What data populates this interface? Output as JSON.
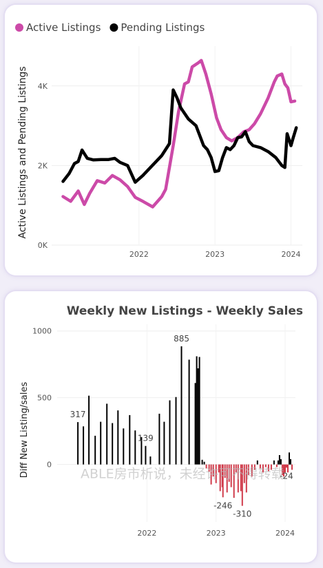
{
  "charts": [
    {
      "type": "line",
      "legend": {
        "position": "top-left",
        "items": [
          {
            "label": "Active Listings",
            "color": "#cc4aa8",
            "icon": "circle-marker-icon"
          },
          {
            "label": "Pending Listings",
            "color": "#000000",
            "icon": "circle-marker-icon"
          }
        ]
      },
      "ylabel": "Active Listings and Pending Listings",
      "xlabel": "",
      "ylim": [
        0,
        5000
      ],
      "yticks": [
        {
          "v": 0,
          "label": "0K"
        },
        {
          "v": 2000,
          "label": "2K"
        },
        {
          "v": 4000,
          "label": "4K"
        }
      ],
      "xticks": [
        {
          "v": 2022.0,
          "label": "2022"
        },
        {
          "v": 2023.0,
          "label": "2023"
        },
        {
          "v": 2024.0,
          "label": "2024"
        }
      ],
      "xlim": [
        2020.85,
        2024.15
      ],
      "series": [
        {
          "name": "Active Listings",
          "color": "#cc4aa8",
          "points": [
            [
              2021.0,
              1220
            ],
            [
              2021.1,
              1100
            ],
            [
              2021.2,
              1360
            ],
            [
              2021.28,
              1020
            ],
            [
              2021.35,
              1300
            ],
            [
              2021.45,
              1620
            ],
            [
              2021.55,
              1560
            ],
            [
              2021.65,
              1750
            ],
            [
              2021.75,
              1640
            ],
            [
              2021.85,
              1470
            ],
            [
              2021.95,
              1200
            ],
            [
              2022.05,
              1100
            ],
            [
              2022.18,
              960
            ],
            [
              2022.3,
              1220
            ],
            [
              2022.35,
              1400
            ],
            [
              2022.45,
              2500
            ],
            [
              2022.52,
              3350
            ],
            [
              2022.6,
              4050
            ],
            [
              2022.65,
              4100
            ],
            [
              2022.7,
              4480
            ],
            [
              2022.78,
              4580
            ],
            [
              2022.82,
              4640
            ],
            [
              2022.88,
              4300
            ],
            [
              2022.95,
              3800
            ],
            [
              2023.02,
              3200
            ],
            [
              2023.08,
              2900
            ],
            [
              2023.15,
              2700
            ],
            [
              2023.22,
              2620
            ],
            [
              2023.3,
              2700
            ],
            [
              2023.38,
              2850
            ],
            [
              2023.45,
              2900
            ],
            [
              2023.52,
              3050
            ],
            [
              2023.6,
              3300
            ],
            [
              2023.7,
              3700
            ],
            [
              2023.78,
              4100
            ],
            [
              2023.82,
              4250
            ],
            [
              2023.88,
              4300
            ],
            [
              2023.92,
              4050
            ],
            [
              2023.96,
              3950
            ],
            [
              2024.0,
              3600
            ],
            [
              2024.05,
              3620
            ]
          ]
        },
        {
          "name": "Pending Listings",
          "color": "#000000",
          "points": [
            [
              2021.0,
              1600
            ],
            [
              2021.08,
              1800
            ],
            [
              2021.15,
              2050
            ],
            [
              2021.2,
              2100
            ],
            [
              2021.25,
              2390
            ],
            [
              2021.32,
              2180
            ],
            [
              2021.4,
              2140
            ],
            [
              2021.5,
              2150
            ],
            [
              2021.6,
              2150
            ],
            [
              2021.68,
              2180
            ],
            [
              2021.75,
              2080
            ],
            [
              2021.85,
              2000
            ],
            [
              2021.95,
              1580
            ],
            [
              2022.05,
              1750
            ],
            [
              2022.15,
              1950
            ],
            [
              2022.3,
              2250
            ],
            [
              2022.4,
              2550
            ],
            [
              2022.45,
              3900
            ],
            [
              2022.5,
              3700
            ],
            [
              2022.55,
              3450
            ],
            [
              2022.65,
              3170
            ],
            [
              2022.75,
              3000
            ],
            [
              2022.8,
              2750
            ],
            [
              2022.85,
              2500
            ],
            [
              2022.9,
              2400
            ],
            [
              2022.95,
              2200
            ],
            [
              2023.0,
              1850
            ],
            [
              2023.05,
              1870
            ],
            [
              2023.1,
              2200
            ],
            [
              2023.15,
              2450
            ],
            [
              2023.2,
              2400
            ],
            [
              2023.25,
              2500
            ],
            [
              2023.3,
              2700
            ],
            [
              2023.35,
              2720
            ],
            [
              2023.4,
              2850
            ],
            [
              2023.45,
              2600
            ],
            [
              2023.5,
              2500
            ],
            [
              2023.6,
              2450
            ],
            [
              2023.7,
              2350
            ],
            [
              2023.8,
              2200
            ],
            [
              2023.88,
              2000
            ],
            [
              2023.92,
              1950
            ],
            [
              2023.95,
              2800
            ],
            [
              2024.0,
              2500
            ],
            [
              2024.03,
              2700
            ],
            [
              2024.07,
              2950
            ]
          ]
        }
      ]
    },
    {
      "type": "bar",
      "title": "Weekly New Listings - Weekly Sales",
      "ylabel": "Diff New Listing/sales",
      "xlabel": "",
      "ylim": [
        -430,
        1050
      ],
      "yticks": [
        {
          "v": 0,
          "label": "0"
        },
        {
          "v": 500,
          "label": "500"
        },
        {
          "v": 1000,
          "label": "1000"
        }
      ],
      "xticks": [
        {
          "v": 2022.0,
          "label": "2022"
        },
        {
          "v": 2023.0,
          "label": "2023"
        },
        {
          "v": 2024.0,
          "label": "2024"
        }
      ],
      "xlim": [
        2020.7,
        2024.15
      ],
      "positive_color": "#000000",
      "negative_color": "#d03a4a",
      "data_labels": [
        {
          "x": 2021.0,
          "v": 317,
          "label": "317"
        },
        {
          "x": 2021.98,
          "v": 139,
          "label": "139"
        },
        {
          "x": 2022.5,
          "v": 885,
          "label": "885"
        },
        {
          "x": 2023.1,
          "v": -246,
          "label": "-246"
        },
        {
          "x": 2023.38,
          "v": -310,
          "label": "-310"
        },
        {
          "x": 2024.02,
          "v": -24,
          "label": "-24"
        }
      ],
      "bars": [
        [
          2021.0,
          317
        ],
        [
          2021.08,
          285
        ],
        [
          2021.16,
          515
        ],
        [
          2021.25,
          215
        ],
        [
          2021.33,
          320
        ],
        [
          2021.42,
          455
        ],
        [
          2021.5,
          310
        ],
        [
          2021.58,
          405
        ],
        [
          2021.66,
          270
        ],
        [
          2021.75,
          370
        ],
        [
          2021.83,
          255
        ],
        [
          2021.92,
          205
        ],
        [
          2021.98,
          139
        ],
        [
          2022.05,
          60
        ],
        [
          2022.18,
          380
        ],
        [
          2022.25,
          320
        ],
        [
          2022.33,
          480
        ],
        [
          2022.42,
          505
        ],
        [
          2022.5,
          885
        ],
        [
          2022.58,
          0
        ],
        [
          2022.61,
          785
        ],
        [
          2022.66,
          0
        ],
        [
          2022.7,
          610
        ],
        [
          2022.72,
          810
        ],
        [
          2022.74,
          720
        ],
        [
          2022.76,
          805
        ],
        [
          2022.8,
          35
        ],
        [
          2022.83,
          20
        ],
        [
          2022.86,
          -30
        ],
        [
          2022.9,
          -55
        ],
        [
          2022.93,
          -150
        ],
        [
          2022.96,
          -90
        ],
        [
          2023.0,
          -140
        ],
        [
          2023.04,
          -60
        ],
        [
          2023.06,
          -200
        ],
        [
          2023.09,
          -170
        ],
        [
          2023.1,
          -246
        ],
        [
          2023.13,
          -100
        ],
        [
          2023.16,
          -210
        ],
        [
          2023.19,
          -130
        ],
        [
          2023.22,
          -170
        ],
        [
          2023.26,
          -250
        ],
        [
          2023.29,
          -60
        ],
        [
          2023.32,
          -210
        ],
        [
          2023.36,
          -200
        ],
        [
          2023.38,
          -310
        ],
        [
          2023.41,
          -140
        ],
        [
          2023.44,
          -210
        ],
        [
          2023.47,
          -80
        ],
        [
          2023.52,
          -90
        ],
        [
          2023.56,
          -40
        ],
        [
          2023.6,
          30
        ],
        [
          2023.64,
          -30
        ],
        [
          2023.68,
          -60
        ],
        [
          2023.72,
          -20
        ],
        [
          2023.76,
          -50
        ],
        [
          2023.8,
          -40
        ],
        [
          2023.84,
          30
        ],
        [
          2023.88,
          -20
        ],
        [
          2023.9,
          30
        ],
        [
          2023.92,
          70
        ],
        [
          2023.94,
          40
        ],
        [
          2023.96,
          -80
        ],
        [
          2023.98,
          -90
        ],
        [
          2024.0,
          -60
        ],
        [
          2024.02,
          -24
        ],
        [
          2024.04,
          -60
        ],
        [
          2024.06,
          90
        ],
        [
          2024.08,
          40
        ],
        [
          2024.1,
          -40
        ]
      ]
    }
  ],
  "watermark": "ABLE房市析说，未经许可不得转载"
}
